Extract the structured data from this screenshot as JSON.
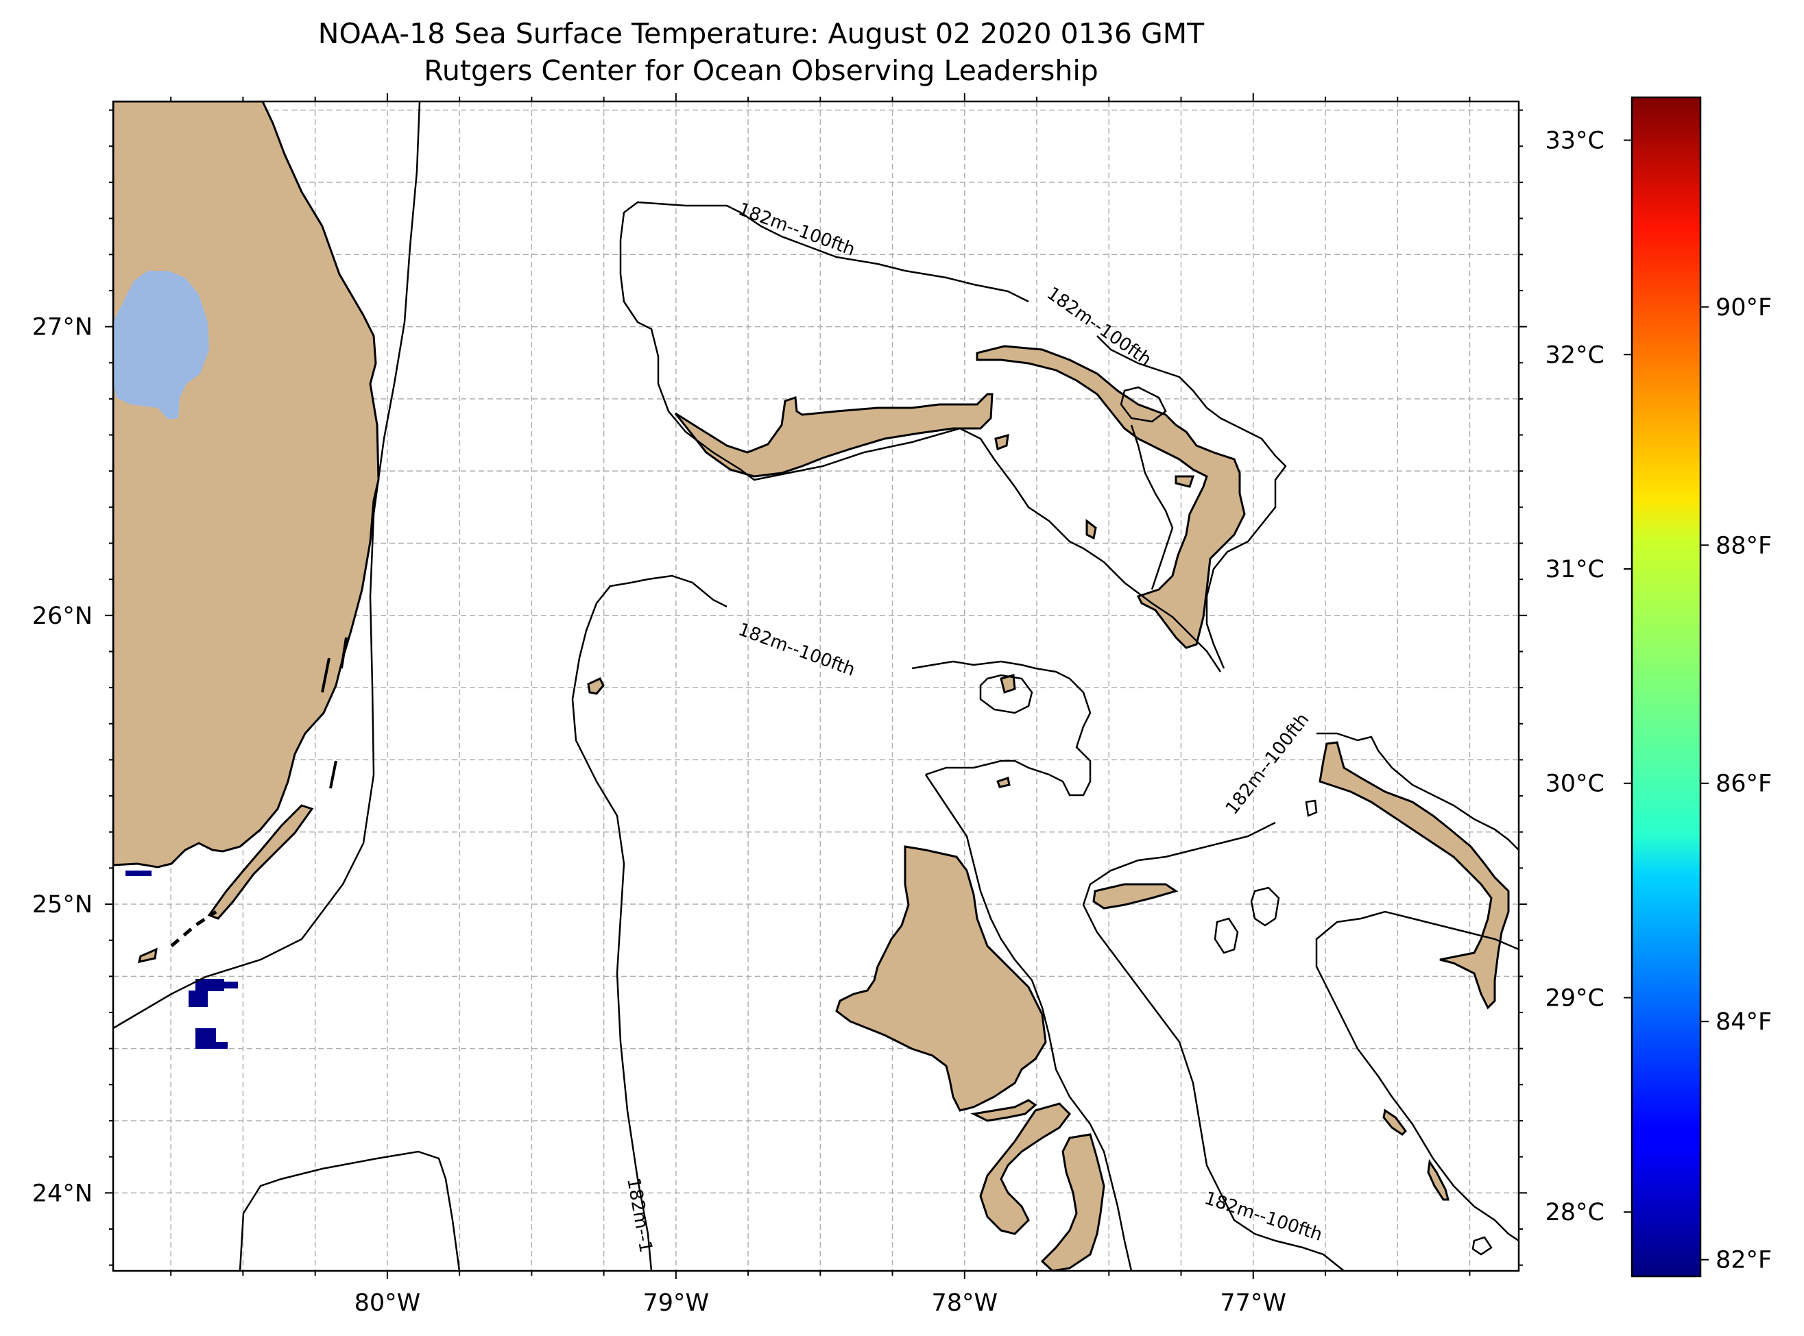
{
  "title": {
    "line1": "NOAA-18 Sea Surface Temperature: August 02 2020 0136 GMT",
    "line2": "Rutgers Center for Ocean Observing Leadership"
  },
  "map": {
    "lon_range": [
      -80.95,
      -76.08
    ],
    "lat_range": [
      23.73,
      27.78
    ],
    "lon_ticks": [
      {
        "value": -80,
        "label": "80°W"
      },
      {
        "value": -79,
        "label": "79°W"
      },
      {
        "value": -78,
        "label": "78°W"
      },
      {
        "value": -77,
        "label": "77°W"
      }
    ],
    "lat_ticks": [
      {
        "value": 27,
        "label": "27°N"
      },
      {
        "value": 26,
        "label": "26°N"
      },
      {
        "value": 25,
        "label": "25°N"
      },
      {
        "value": 24,
        "label": "24°N"
      }
    ],
    "grid": "dashed, every 0.25°",
    "contour_label": "182m--100fth",
    "contour_label_truncated": "182m--1",
    "colors": {
      "land": "#d2b48c",
      "lake": "#9bb8e3",
      "ocean_no_data": "#ffffff",
      "grid": "#b0b0b0",
      "sst_pixels": "#00008b"
    }
  },
  "colorbar": {
    "colormap": "jet",
    "range_c": [
      27.7,
      33.2
    ],
    "range_f": [
      81.86,
      91.76
    ],
    "celsius_ticks": [
      {
        "value": 33,
        "label": "33°C"
      },
      {
        "value": 32,
        "label": "32°C"
      },
      {
        "value": 31,
        "label": "31°C"
      },
      {
        "value": 30,
        "label": "30°C"
      },
      {
        "value": 29,
        "label": "29°C"
      },
      {
        "value": 28,
        "label": "28°C"
      }
    ],
    "fahrenheit_ticks": [
      {
        "value": 90,
        "label": "90°F"
      },
      {
        "value": 88,
        "label": "88°F"
      },
      {
        "value": 86,
        "label": "86°F"
      },
      {
        "value": 84,
        "label": "84°F"
      },
      {
        "value": 82,
        "label": "82°F"
      }
    ]
  }
}
